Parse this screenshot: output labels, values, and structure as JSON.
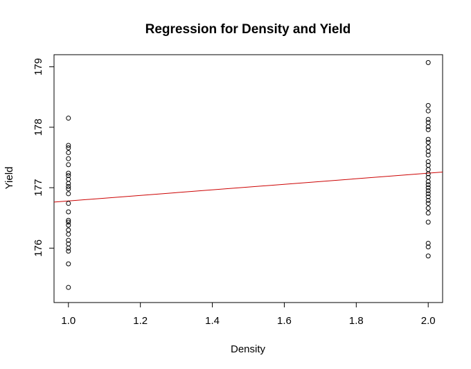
{
  "chart_data": {
    "type": "scatter",
    "title": "Regression for Density and Yield",
    "xlabel": "Density",
    "ylabel": "Yield",
    "xlim": [
      0.96,
      2.04
    ],
    "ylim": [
      175.1,
      179.2
    ],
    "x_ticks": [
      "1.0",
      "1.2",
      "1.4",
      "1.6",
      "1.8",
      "2.0"
    ],
    "y_ticks": [
      "176",
      "177",
      "178",
      "179"
    ],
    "grid": false,
    "series": [
      {
        "points": [
          [
            1.0,
            178.15
          ],
          [
            1.0,
            177.7
          ],
          [
            1.0,
            177.66
          ],
          [
            1.0,
            177.58
          ],
          [
            1.0,
            177.48
          ],
          [
            1.0,
            177.38
          ],
          [
            1.0,
            177.24
          ],
          [
            1.0,
            177.2
          ],
          [
            1.0,
            177.14
          ],
          [
            1.0,
            177.07
          ],
          [
            1.0,
            177.02
          ],
          [
            1.0,
            176.98
          ],
          [
            1.0,
            176.9
          ],
          [
            1.0,
            176.74
          ],
          [
            1.0,
            176.6
          ],
          [
            1.0,
            176.46
          ],
          [
            1.0,
            176.43
          ],
          [
            1.0,
            176.38
          ],
          [
            1.0,
            176.3
          ],
          [
            1.0,
            176.23
          ],
          [
            1.0,
            176.13
          ],
          [
            1.0,
            176.07
          ],
          [
            1.0,
            176.0
          ],
          [
            1.0,
            175.95
          ],
          [
            1.0,
            175.74
          ],
          [
            1.0,
            175.35
          ],
          [
            2.0,
            179.07
          ],
          [
            2.0,
            178.36
          ],
          [
            2.0,
            178.27
          ],
          [
            2.0,
            178.13
          ],
          [
            2.0,
            178.08
          ],
          [
            2.0,
            178.01
          ],
          [
            2.0,
            177.96
          ],
          [
            2.0,
            177.8
          ],
          [
            2.0,
            177.75
          ],
          [
            2.0,
            177.67
          ],
          [
            2.0,
            177.6
          ],
          [
            2.0,
            177.54
          ],
          [
            2.0,
            177.43
          ],
          [
            2.0,
            177.37
          ],
          [
            2.0,
            177.3
          ],
          [
            2.0,
            177.23
          ],
          [
            2.0,
            177.17
          ],
          [
            2.0,
            177.1
          ],
          [
            2.0,
            177.05
          ],
          [
            2.0,
            177.0
          ],
          [
            2.0,
            176.95
          ],
          [
            2.0,
            176.9
          ],
          [
            2.0,
            176.85
          ],
          [
            2.0,
            176.79
          ],
          [
            2.0,
            176.74
          ],
          [
            2.0,
            176.66
          ],
          [
            2.0,
            176.58
          ],
          [
            2.0,
            176.43
          ],
          [
            2.0,
            176.08
          ],
          [
            2.0,
            176.02
          ],
          [
            2.0,
            175.87
          ]
        ],
        "color": "#000000"
      }
    ],
    "regression_line": {
      "intercept": 176.32,
      "slope": 0.46,
      "color": "#cc0000"
    }
  }
}
